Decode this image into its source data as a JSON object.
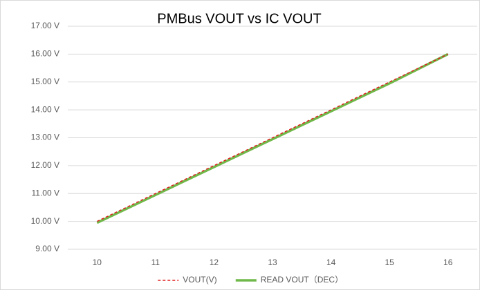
{
  "chart_data": {
    "type": "line",
    "title": "PMBus VOUT vs IC VOUT",
    "x": [
      10,
      11,
      12,
      13,
      14,
      15,
      16
    ],
    "xlim": [
      9.5,
      16.5
    ],
    "xticks": [
      10,
      11,
      12,
      13,
      14,
      15,
      16
    ],
    "ylim": [
      9,
      17
    ],
    "yticks": [
      {
        "value": 9,
        "label": "9.00 V"
      },
      {
        "value": 10,
        "label": "10.00 V"
      },
      {
        "value": 11,
        "label": "11.00 V"
      },
      {
        "value": 12,
        "label": "12.00 V"
      },
      {
        "value": 13,
        "label": "13.00 V"
      },
      {
        "value": 14,
        "label": "14.00 V"
      },
      {
        "value": 15,
        "label": "15.00 V"
      },
      {
        "value": 16,
        "label": "16.00 V"
      },
      {
        "value": 17,
        "label": "17.00 V"
      }
    ],
    "grid": true,
    "legend": "bottom",
    "series": [
      {
        "name": "VOUT(V)",
        "color": "#e02020",
        "dash": true,
        "values": [
          10,
          11,
          12,
          13,
          14,
          15,
          16
        ]
      },
      {
        "name": "READ VOUT（DEC）",
        "color": "#70b84a",
        "dash": false,
        "values": [
          9.95,
          10.95,
          11.95,
          12.95,
          13.95,
          14.95,
          16
        ]
      }
    ]
  }
}
